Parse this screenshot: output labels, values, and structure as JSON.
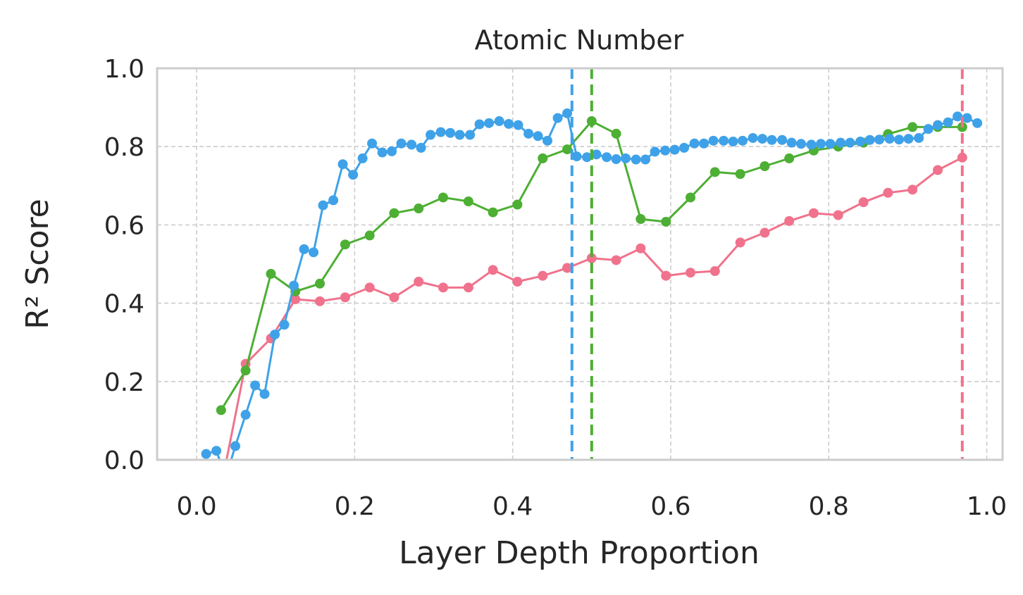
{
  "chart_data": {
    "type": "line",
    "title": "Atomic Number",
    "xlabel": "Layer Depth Proportion",
    "ylabel": "R² Score",
    "xlim": [
      -0.05,
      1.02
    ],
    "ylim": [
      0.0,
      1.0
    ],
    "xticks": [
      "0.0",
      "0.2",
      "0.4",
      "0.6",
      "0.8",
      "1.0"
    ],
    "yticks": [
      "0.0",
      "0.2",
      "0.4",
      "0.6",
      "0.8",
      "1.0"
    ],
    "grid": true,
    "series": [
      {
        "color": "#f0728c",
        "x": [
          0.031,
          0.062,
          0.094,
          0.125,
          0.156,
          0.188,
          0.219,
          0.25,
          0.281,
          0.312,
          0.344,
          0.375,
          0.406,
          0.438,
          0.469,
          0.5,
          0.531,
          0.562,
          0.594,
          0.625,
          0.656,
          0.688,
          0.719,
          0.75,
          0.781,
          0.812,
          0.844,
          0.875,
          0.906,
          0.938,
          0.969
        ],
        "y": [
          -0.07,
          0.245,
          0.31,
          0.41,
          0.405,
          0.415,
          0.44,
          0.415,
          0.455,
          0.44,
          0.44,
          0.485,
          0.455,
          0.47,
          0.49,
          0.515,
          0.51,
          0.54,
          0.47,
          0.478,
          0.482,
          0.555,
          0.58,
          0.61,
          0.63,
          0.625,
          0.658,
          0.682,
          0.69,
          0.74,
          0.772
        ]
      },
      {
        "color": "#4daf33",
        "x": [
          0.031,
          0.062,
          0.094,
          0.125,
          0.156,
          0.188,
          0.219,
          0.25,
          0.281,
          0.312,
          0.344,
          0.375,
          0.406,
          0.438,
          0.469,
          0.5,
          0.531,
          0.562,
          0.594,
          0.625,
          0.656,
          0.688,
          0.719,
          0.75,
          0.781,
          0.812,
          0.844,
          0.875,
          0.906,
          0.938,
          0.969
        ],
        "y": [
          0.127,
          0.228,
          0.475,
          0.43,
          0.45,
          0.55,
          0.573,
          0.63,
          0.642,
          0.67,
          0.66,
          0.632,
          0.652,
          0.77,
          0.793,
          0.865,
          0.833,
          0.615,
          0.608,
          0.67,
          0.735,
          0.73,
          0.75,
          0.77,
          0.79,
          0.8,
          0.81,
          0.832,
          0.85,
          0.85,
          0.85
        ]
      },
      {
        "color": "#3fa2e8",
        "x": [
          0.012,
          0.025,
          0.037,
          0.049,
          0.062,
          0.074,
          0.086,
          0.099,
          0.111,
          0.123,
          0.136,
          0.148,
          0.16,
          0.173,
          0.185,
          0.198,
          0.21,
          0.222,
          0.235,
          0.247,
          0.259,
          0.272,
          0.284,
          0.296,
          0.309,
          0.321,
          0.333,
          0.346,
          0.358,
          0.37,
          0.383,
          0.395,
          0.407,
          0.42,
          0.432,
          0.444,
          0.457,
          0.469,
          0.481,
          0.494,
          0.506,
          0.519,
          0.531,
          0.543,
          0.556,
          0.568,
          0.58,
          0.593,
          0.605,
          0.617,
          0.63,
          0.642,
          0.654,
          0.667,
          0.679,
          0.691,
          0.704,
          0.716,
          0.728,
          0.741,
          0.753,
          0.765,
          0.778,
          0.79,
          0.802,
          0.815,
          0.827,
          0.84,
          0.852,
          0.864,
          0.877,
          0.889,
          0.901,
          0.914,
          0.926,
          0.938,
          0.951,
          0.963,
          0.975,
          0.988
        ],
        "y": [
          0.015,
          0.023,
          -0.045,
          0.035,
          0.115,
          0.19,
          0.168,
          0.32,
          0.345,
          0.445,
          0.538,
          0.53,
          0.65,
          0.663,
          0.755,
          0.728,
          0.77,
          0.808,
          0.785,
          0.788,
          0.808,
          0.805,
          0.797,
          0.83,
          0.837,
          0.835,
          0.83,
          0.83,
          0.857,
          0.86,
          0.865,
          0.858,
          0.855,
          0.833,
          0.827,
          0.815,
          0.873,
          0.885,
          0.775,
          0.773,
          0.78,
          0.773,
          0.768,
          0.77,
          0.767,
          0.767,
          0.787,
          0.79,
          0.792,
          0.797,
          0.808,
          0.808,
          0.815,
          0.815,
          0.813,
          0.815,
          0.822,
          0.82,
          0.817,
          0.817,
          0.81,
          0.807,
          0.805,
          0.807,
          0.807,
          0.81,
          0.81,
          0.813,
          0.817,
          0.818,
          0.82,
          0.818,
          0.82,
          0.822,
          0.845,
          0.855,
          0.862,
          0.877,
          0.873,
          0.86
        ]
      }
    ],
    "vlines": [
      {
        "x": 0.475,
        "color": "#3fa2e8",
        "style": "dashed"
      },
      {
        "x": 0.5,
        "color": "#4daf33",
        "style": "dashed"
      },
      {
        "x": 0.969,
        "color": "#f0728c",
        "style": "dashed"
      }
    ]
  }
}
